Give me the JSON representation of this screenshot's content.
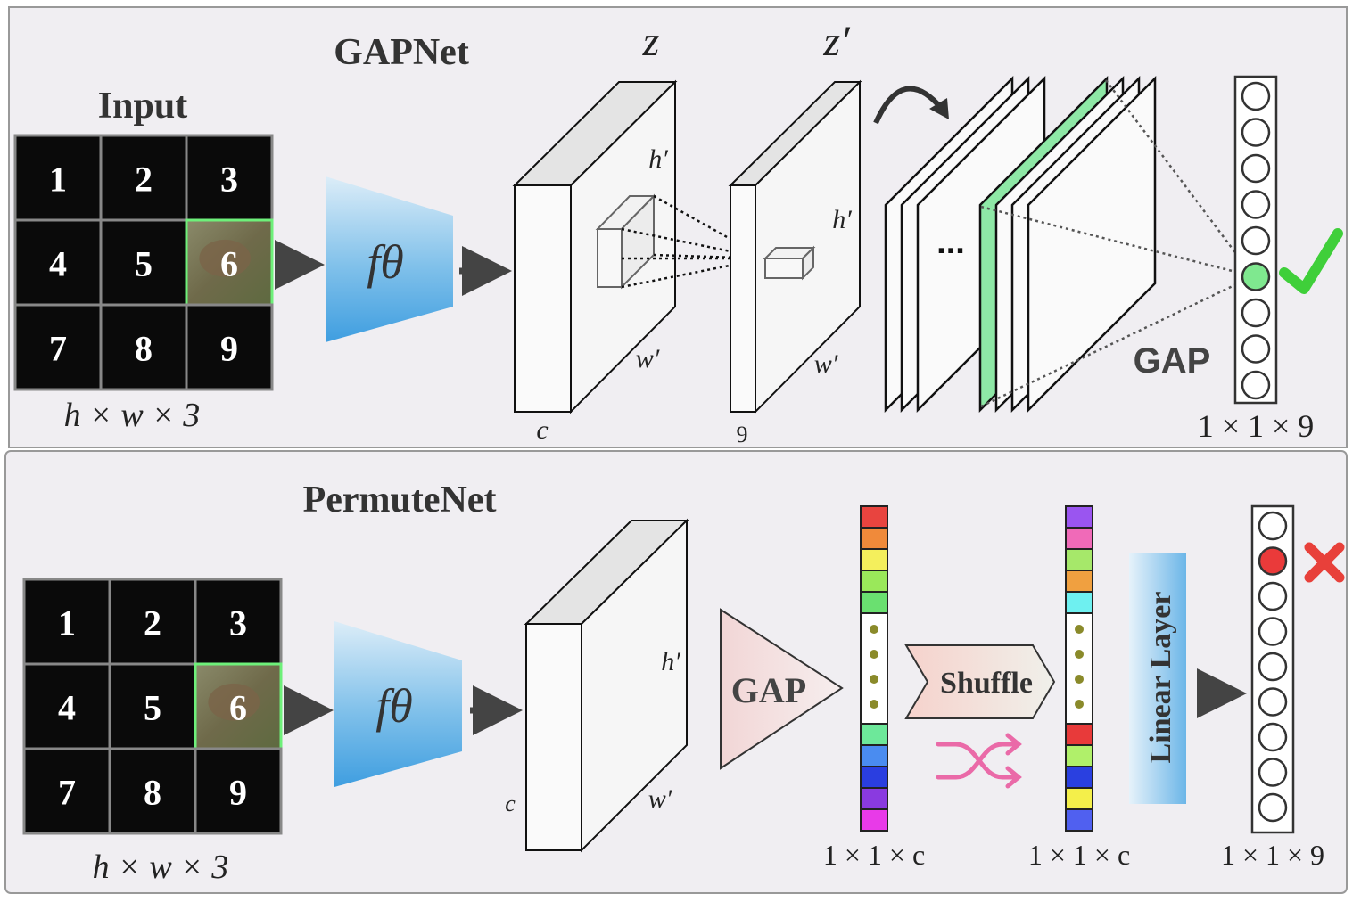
{
  "top": {
    "title": "GAPNet",
    "input_label": "Input",
    "input_dims": "h × w × 3",
    "grid_numbers": [
      "1",
      "2",
      "3",
      "4",
      "5",
      "6",
      "7",
      "8",
      "9"
    ],
    "highlight_cell": 6,
    "encoder_symbol": "fθ",
    "z_label": "z",
    "z_prime_label": "z′",
    "z_h": "h′",
    "z_w": "w′",
    "z_c": "c",
    "zp_h": "h′",
    "zp_w": "w′",
    "zp_c": "9",
    "ellipsis": "...",
    "gap_label": "GAP",
    "output_dims": "1 × 1 × 9",
    "output_nodes": 9,
    "active_node": 6,
    "result_icon": "check-icon",
    "accent_color": "#8ee8a6",
    "check_color": "#3fcf3a"
  },
  "bottom": {
    "title": "PermuteNet",
    "input_dims": "h × w × 3",
    "grid_numbers": [
      "1",
      "2",
      "3",
      "4",
      "5",
      "6",
      "7",
      "8",
      "9"
    ],
    "highlight_cell": 6,
    "encoder_symbol": "fθ",
    "z_h": "h′",
    "z_w": "w′",
    "z_c": "c",
    "gap_label": "GAP",
    "vector_dims": "1 × 1 × c",
    "shuffle_label": "Shuffle",
    "shuffle_icon": "shuffle-icon",
    "shuffled_dims": "1 × 1 × c",
    "linear_label": "Linear Layer",
    "output_dims": "1 × 1 × 9",
    "output_nodes": 9,
    "active_node": 2,
    "result_icon": "cross-icon",
    "active_color": "#ea3a3a",
    "vector_top_colors": [
      "#e8443f",
      "#f08a3a",
      "#f4ef5c",
      "#9ae85a",
      "#6ae070"
    ],
    "vector_bottom_colors": [
      "#6de89a",
      "#4a8cf0",
      "#2a3ee0",
      "#8a3ae0",
      "#e83ae8"
    ],
    "shuffled_top_colors": [
      "#9a55f0",
      "#f06ab8",
      "#a6e86a",
      "#f0a040",
      "#6ef0f0"
    ],
    "shuffled_bottom_colors": [
      "#e83a3a",
      "#b0f06a",
      "#2a40e0",
      "#f4ef4a",
      "#5060f0"
    ],
    "cross_color": "#e8403a",
    "shuffle_color": "#ea6aa8"
  }
}
